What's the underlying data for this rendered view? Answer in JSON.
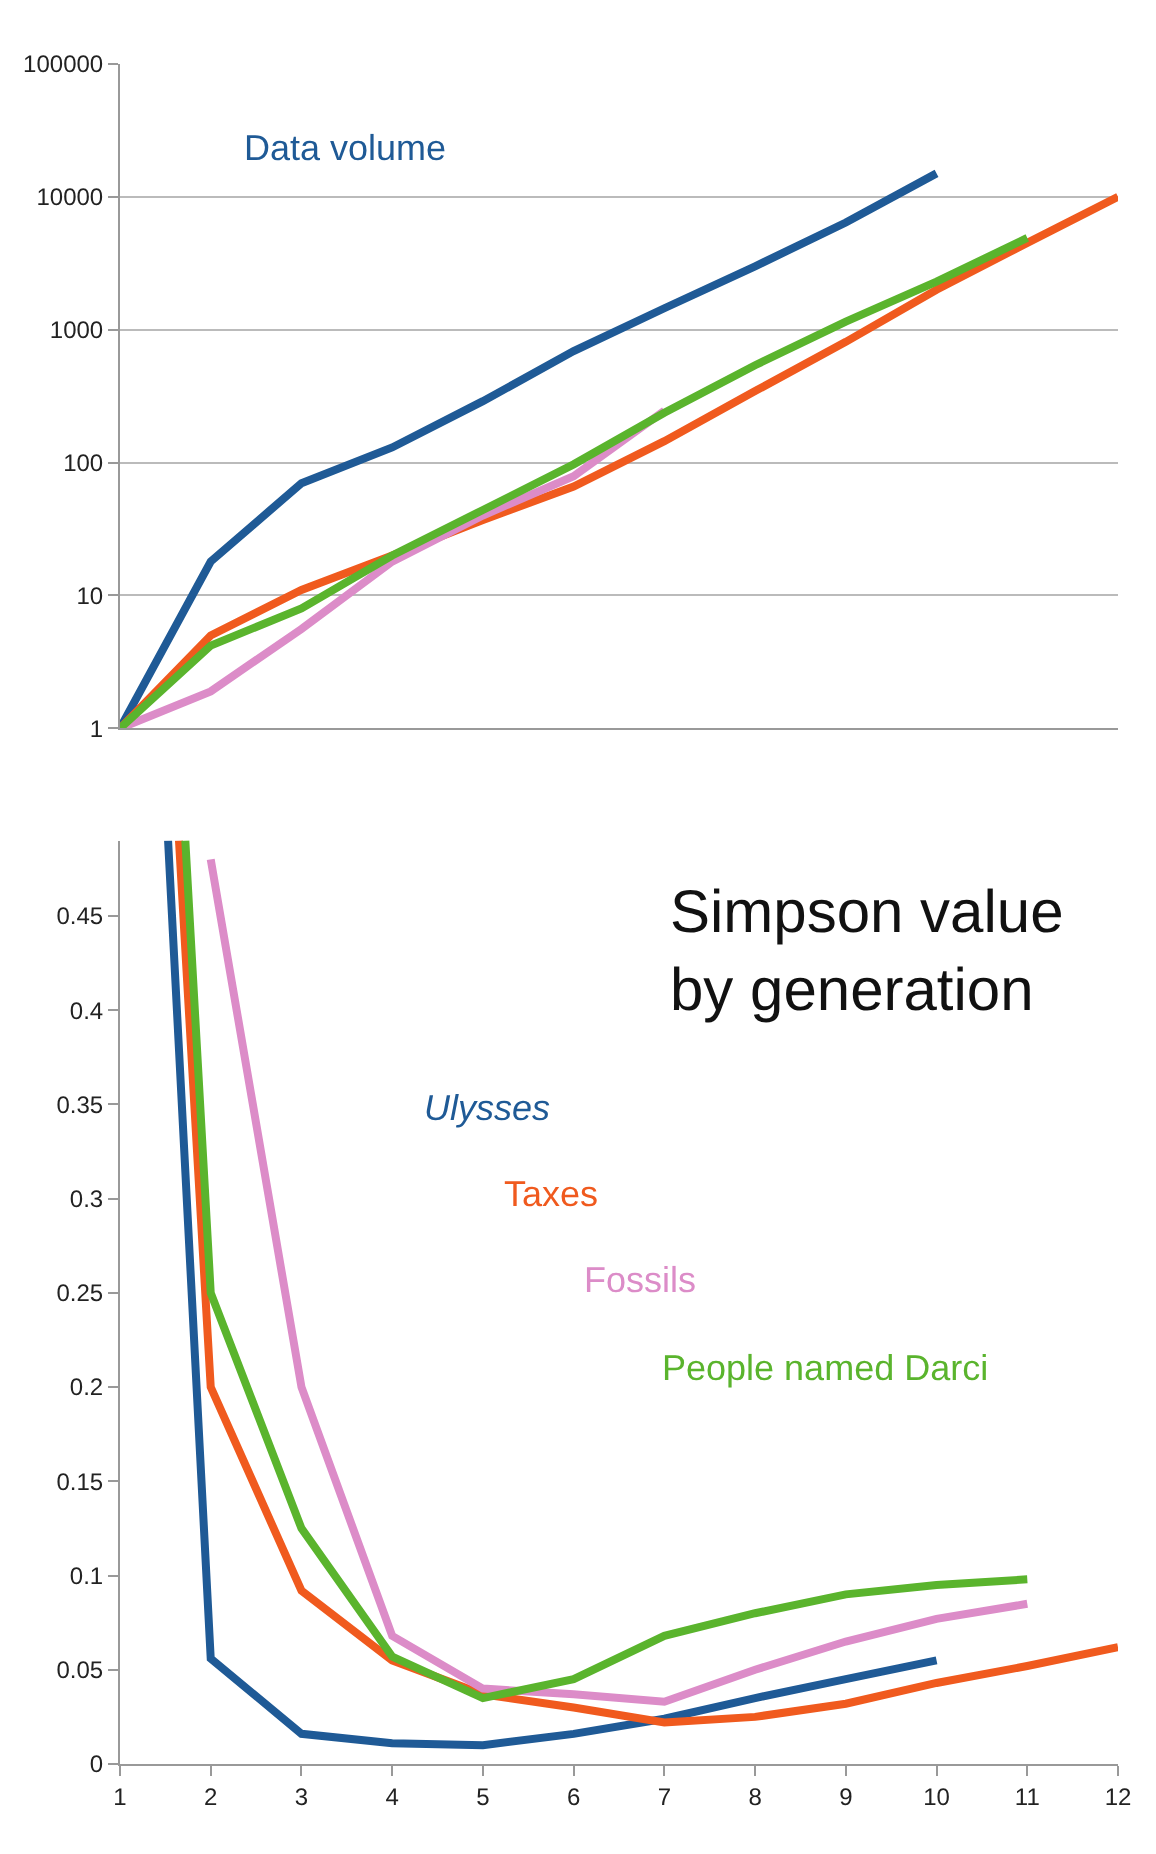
{
  "chart_data": [
    {
      "type": "line",
      "log": true,
      "xlim": [
        1,
        12
      ],
      "ylim": [
        1,
        100000
      ],
      "yticks": [
        1,
        10,
        100,
        1000,
        10000,
        100000
      ],
      "tick_labels": "y",
      "grid": "y",
      "legend": false,
      "annotations": [
        "Data volume"
      ],
      "series": [
        {
          "color": "#1f5a96",
          "x": [
            1,
            2,
            3,
            4,
            5,
            6,
            7,
            8,
            9,
            10
          ],
          "values": [
            1,
            18,
            70,
            130,
            290,
            690,
            1450,
            3000,
            6400,
            15000
          ]
        },
        {
          "color": "#f05a1e",
          "x": [
            1,
            2,
            3,
            4,
            5,
            6,
            7,
            8,
            9,
            10,
            11,
            12
          ],
          "values": [
            1,
            5,
            11,
            20,
            37,
            66,
            145,
            345,
            810,
            2000,
            4500,
            10000
          ]
        },
        {
          "color": "#dc8cc8",
          "x": [
            1,
            2,
            3,
            4,
            5,
            6,
            7
          ],
          "values": [
            1,
            1.9,
            5.6,
            18,
            40,
            79,
            245
          ]
        },
        {
          "color": "#5ab42d",
          "x": [
            1,
            2,
            3,
            4,
            5,
            6,
            7,
            8,
            9,
            10,
            11
          ],
          "values": [
            1,
            4.2,
            8,
            20,
            44,
            97,
            237,
            540,
            1150,
            2300,
            4900
          ]
        }
      ]
    },
    {
      "type": "line",
      "title": "Simpson value\nby generation",
      "xlim": [
        1,
        12
      ],
      "xticks": [
        1,
        2,
        3,
        4,
        5,
        6,
        7,
        8,
        9,
        10,
        11,
        12
      ],
      "ylim": [
        0,
        0.49
      ],
      "yticks": [
        0,
        0.05,
        0.1,
        0.15,
        0.2,
        0.25,
        0.3,
        0.35,
        0.4,
        0.45
      ],
      "grid": false,
      "legend": false,
      "series": [
        {
          "name": "Ulysses",
          "color": "#1f5a96",
          "x": [
            1.53,
            2,
            3,
            4,
            5,
            6,
            7,
            8,
            9,
            10
          ],
          "values": [
            0.49,
            0.056,
            0.016,
            0.011,
            0.01,
            0.016,
            0.024,
            0.035,
            0.045,
            0.055
          ]
        },
        {
          "name": "Taxes",
          "color": "#f05a1e",
          "x": [
            1.65,
            2,
            3,
            4,
            5,
            6,
            7,
            8,
            9,
            10,
            11,
            12
          ],
          "values": [
            0.49,
            0.2,
            0.092,
            0.055,
            0.037,
            0.03,
            0.022,
            0.025,
            0.032,
            0.043,
            0.052,
            0.062
          ]
        },
        {
          "name": "Fossils",
          "color": "#dc8cc8",
          "x": [
            2,
            3,
            4,
            5,
            6,
            7,
            8,
            9,
            10,
            11
          ],
          "values": [
            0.48,
            0.2,
            0.068,
            0.04,
            0.037,
            0.033,
            0.05,
            0.065,
            0.077,
            0.085
          ]
        },
        {
          "name": "People named Darci",
          "color": "#5ab42d",
          "x": [
            1.72,
            2,
            3,
            4,
            5,
            6,
            7,
            8,
            9,
            10,
            11
          ],
          "values": [
            0.49,
            0.25,
            0.125,
            0.057,
            0.035,
            0.045,
            0.068,
            0.08,
            0.09,
            0.095,
            0.098
          ]
        }
      ]
    }
  ]
}
